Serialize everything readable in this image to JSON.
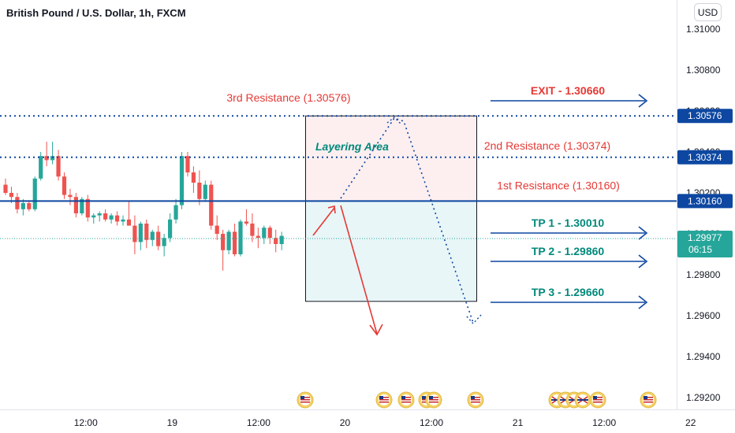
{
  "header": {
    "title": "British Pound / U.S. Dollar, 1h, FXCM"
  },
  "currency_button": {
    "label": "USD"
  },
  "colors": {
    "up": "#26a69a",
    "down": "#ef5350",
    "level": "#0d47a1",
    "red": "#e53935",
    "teal": "#00897b",
    "price_tag": "#26a69a"
  },
  "chart_data": {
    "type": "candlestick",
    "title": "British Pound / U.S. Dollar, 1h, FXCM",
    "ylim": [
      1.2915,
      1.311
    ],
    "y_ticks": [
      "1.31000",
      "1.30800",
      "1.30600",
      "1.30400",
      "1.30200",
      "1.30000",
      "1.29800",
      "1.29600",
      "1.29400",
      "1.29200"
    ],
    "x_ticks": [
      {
        "label": "12:00",
        "hour": 6
      },
      {
        "label": "19",
        "hour": 18
      },
      {
        "label": "12:00",
        "hour": 30
      },
      {
        "label": "20",
        "hour": 42
      },
      {
        "label": "12:00",
        "hour": 54
      },
      {
        "label": "21",
        "hour": 66
      },
      {
        "label": "12:00",
        "hour": 78
      },
      {
        "label": "22",
        "hour": 90
      }
    ],
    "candles": [
      [
        1.3024,
        1.3027,
        1.3019,
        1.302
      ],
      [
        1.302,
        1.3023,
        1.3015,
        1.3018
      ],
      [
        1.3018,
        1.302,
        1.301,
        1.3012
      ],
      [
        1.3012,
        1.3017,
        1.3009,
        1.3015
      ],
      [
        1.3015,
        1.3016,
        1.3011,
        1.3012
      ],
      [
        1.3012,
        1.3028,
        1.3011,
        1.3027
      ],
      [
        1.3027,
        1.304,
        1.3026,
        1.3038
      ],
      [
        1.3038,
        1.3045,
        1.3033,
        1.3036
      ],
      [
        1.3036,
        1.3045,
        1.3034,
        1.3038
      ],
      [
        1.3038,
        1.3041,
        1.3026,
        1.3028
      ],
      [
        1.3028,
        1.303,
        1.3017,
        1.3019
      ],
      [
        1.3019,
        1.3022,
        1.3014,
        1.3018
      ],
      [
        1.3018,
        1.302,
        1.3008,
        1.301
      ],
      [
        1.301,
        1.3018,
        1.3009,
        1.3017
      ],
      [
        1.3017,
        1.3019,
        1.3006,
        1.3008
      ],
      [
        1.3008,
        1.301,
        1.3005,
        1.3009
      ],
      [
        1.3009,
        1.3011,
        1.3006,
        1.301
      ],
      [
        1.301,
        1.3012,
        1.3006,
        1.3007
      ],
      [
        1.3007,
        1.301,
        1.3005,
        1.3009
      ],
      [
        1.3009,
        1.3011,
        1.3004,
        1.3006
      ],
      [
        1.3006,
        1.3009,
        1.3004,
        1.3007
      ],
      [
        1.3007,
        1.3016,
        1.3005,
        1.3004
      ],
      [
        1.3004,
        1.3009,
        1.299,
        1.2996
      ],
      [
        1.2996,
        1.3006,
        1.2992,
        1.3005
      ],
      [
        1.3005,
        1.3007,
        1.2993,
        1.2997
      ],
      [
        1.2997,
        1.3002,
        1.2994,
        1.3001
      ],
      [
        1.3001,
        1.3004,
        1.2992,
        1.2994
      ],
      [
        1.2994,
        1.3,
        1.2989,
        1.2998
      ],
      [
        1.2998,
        1.301,
        1.2996,
        1.3007
      ],
      [
        1.3007,
        1.3017,
        1.3005,
        1.3014
      ],
      [
        1.3014,
        1.304,
        1.3012,
        1.3038
      ],
      [
        1.3038,
        1.304,
        1.3028,
        1.303
      ],
      [
        1.303,
        1.3033,
        1.302,
        1.3025
      ],
      [
        1.3025,
        1.3031,
        1.3014,
        1.3017
      ],
      [
        1.3017,
        1.3026,
        1.3016,
        1.3024
      ],
      [
        1.3024,
        1.3026,
        1.3002,
        1.3004
      ],
      [
        1.3004,
        1.3009,
        1.2997,
        1.3
      ],
      [
        1.3,
        1.3002,
        1.2982,
        1.2992
      ],
      [
        1.2992,
        1.3002,
        1.299,
        1.3001
      ],
      [
        1.3001,
        1.3005,
        1.2989,
        1.299
      ],
      [
        1.299,
        1.3007,
        1.2989,
        1.3006
      ],
      [
        1.3006,
        1.3012,
        1.3004,
        1.3005
      ],
      [
        1.3005,
        1.301,
        1.2996,
        1.2999
      ],
      [
        1.2999,
        1.3003,
        1.2993,
        1.2998
      ],
      [
        1.2998,
        1.3004,
        1.2995,
        1.3003
      ],
      [
        1.3003,
        1.3004,
        1.2995,
        1.2998
      ],
      [
        1.2998,
        1.3002,
        1.2991,
        1.2995
      ],
      [
        1.2995,
        1.3001,
        1.2992,
        1.2999
      ]
    ],
    "levels": [
      {
        "name": "3rd Resistance",
        "label": "3rd Resistance (1.30576)",
        "value": 1.30576,
        "style": "dotted",
        "tag": "1.30576"
      },
      {
        "name": "2nd Resistance",
        "label": "2nd Resistance (1.30374)",
        "value": 1.30374,
        "style": "dotted",
        "tag": "1.30374"
      },
      {
        "name": "1st Resistance",
        "label": "1st Resistance (1.30160)",
        "value": 1.3016,
        "style": "solid",
        "tag": "1.30160"
      }
    ],
    "targets": [
      {
        "label": "EXIT - 1.30660",
        "value": 1.3066,
        "color": "red"
      },
      {
        "label": "TP 1 - 1.30010",
        "value": 1.3001,
        "color": "teal"
      },
      {
        "label": "TP 2 - 1.29860",
        "value": 1.2986,
        "color": "teal"
      },
      {
        "label": "TP 3 - 1.29660",
        "value": 1.2966,
        "color": "teal"
      }
    ],
    "layering_area": {
      "label": "Layering Area",
      "top": 1.30576,
      "mid": 1.3016,
      "bottom": 1.2967
    },
    "current_price": {
      "value": 1.29977,
      "price": "1.29977",
      "countdown": "06:15"
    }
  }
}
